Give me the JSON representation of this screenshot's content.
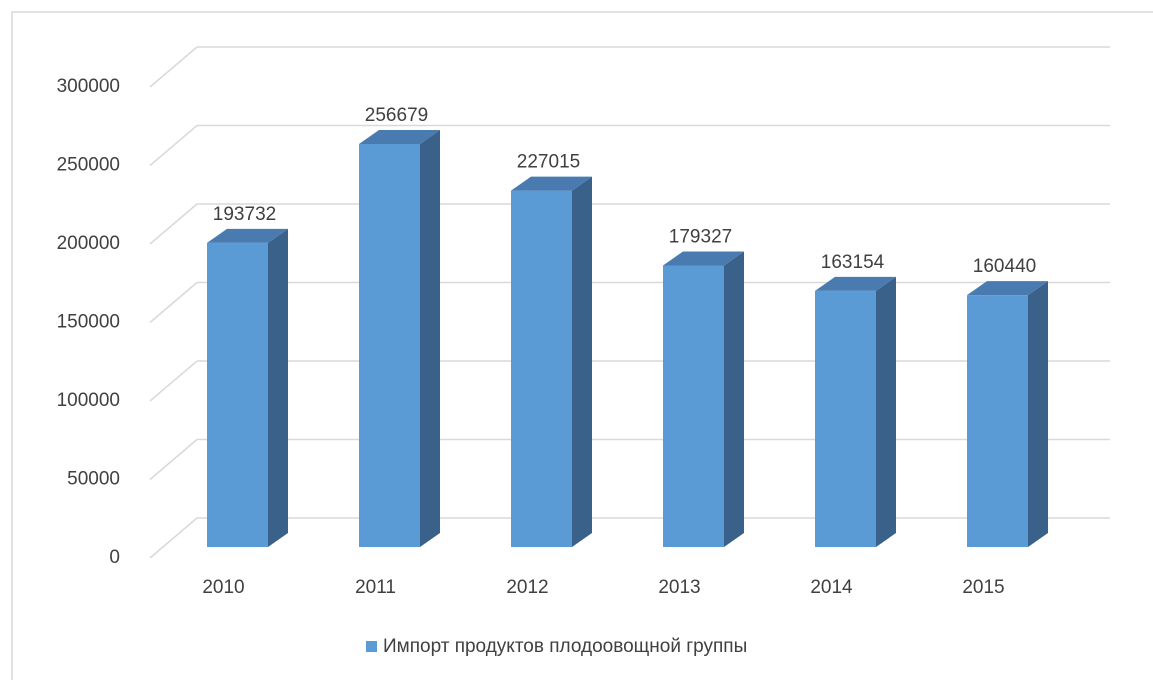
{
  "chart_data": {
    "type": "bar3d",
    "categories": [
      "2010",
      "2011",
      "2012",
      "2013",
      "2014",
      "2015"
    ],
    "series": [
      {
        "name": "Импорт продуктов плодоовощной группы",
        "color": "#5b9bd5",
        "values": [
          193732,
          256679,
          227015,
          179327,
          163154,
          160440
        ]
      }
    ],
    "ylim": [
      0,
      300000
    ],
    "yticks": [
      0,
      50000,
      100000,
      150000,
      200000,
      250000,
      300000
    ],
    "grid": true,
    "legend": "bottom"
  }
}
